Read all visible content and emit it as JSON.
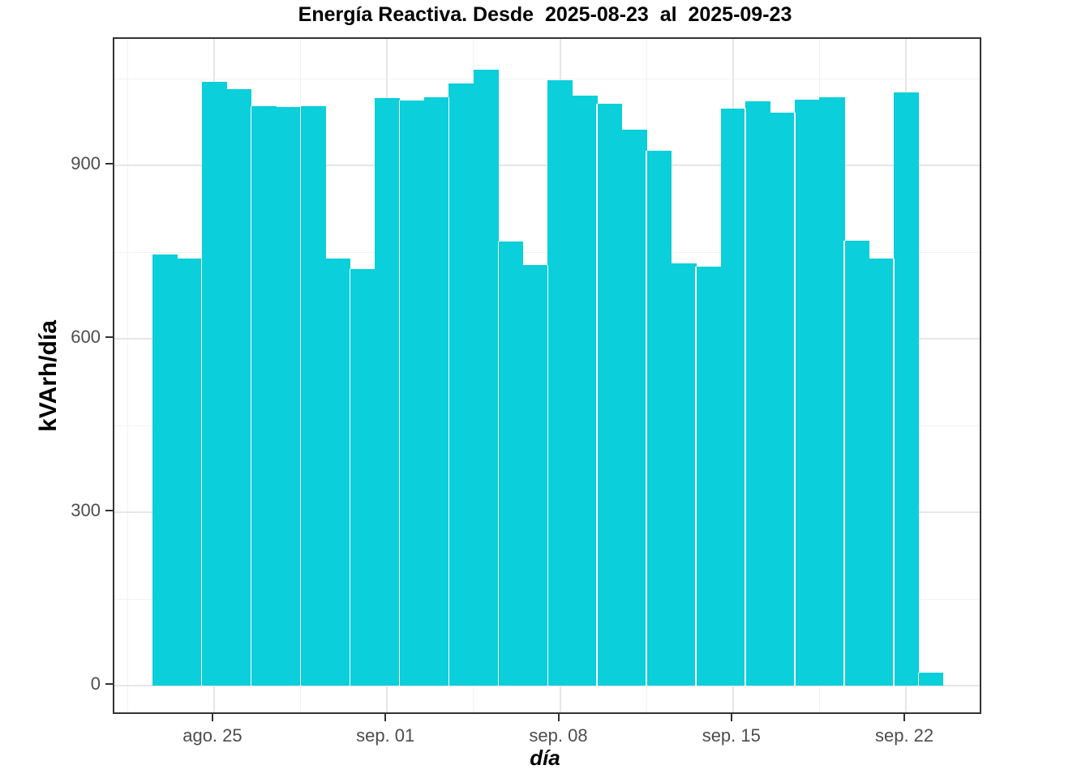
{
  "title": "Energía Reactiva. Desde  2025-08-23  al  2025-09-23",
  "axes": {
    "x_label": "día",
    "y_label": "kVArh/día",
    "x_tick_labels": [
      "ago. 25",
      "sep. 01",
      "sep. 08",
      "sep. 15",
      "sep. 22"
    ],
    "y_tick_labels": [
      "0",
      "300",
      "600",
      "900"
    ]
  },
  "colors": {
    "bar_fill": "#0bcfda",
    "grid_major": "#e6e6e6",
    "grid_minor": "#f2f2f2",
    "panel_border": "#333333",
    "tick_mark": "#333333",
    "tick_text": "#4d4d4d",
    "title_text": "#000000"
  },
  "chart_data": {
    "type": "bar",
    "title": "Energía Reactiva. Desde 2025-08-23 al 2025-09-23",
    "xlabel": "día",
    "ylabel": "kVArh/día",
    "x": [
      "2025-08-23",
      "2025-08-24",
      "2025-08-25",
      "2025-08-26",
      "2025-08-27",
      "2025-08-28",
      "2025-08-29",
      "2025-08-30",
      "2025-08-31",
      "2025-09-01",
      "2025-09-02",
      "2025-09-03",
      "2025-09-04",
      "2025-09-05",
      "2025-09-06",
      "2025-09-07",
      "2025-09-08",
      "2025-09-09",
      "2025-09-10",
      "2025-09-11",
      "2025-09-12",
      "2025-09-13",
      "2025-09-14",
      "2025-09-15",
      "2025-09-16",
      "2025-09-17",
      "2025-09-18",
      "2025-09-19",
      "2025-09-20",
      "2025-09-21",
      "2025-09-22",
      "2025-09-23"
    ],
    "values": [
      746,
      739,
      1044,
      1032,
      1003,
      1001,
      1002,
      739,
      721,
      1016,
      1012,
      1018,
      1042,
      1065,
      768,
      728,
      1047,
      1020,
      1006,
      961,
      925,
      731,
      725,
      998,
      1011,
      991,
      1014,
      1018,
      770,
      739,
      1026,
      22
    ],
    "x_major_ticks": {
      "labels": [
        "ago. 25",
        "sep. 01",
        "sep. 08",
        "sep. 15",
        "sep. 22"
      ],
      "indices": [
        2,
        9,
        16,
        23,
        30
      ]
    },
    "y_major_ticks": [
      0,
      300,
      600,
      900
    ],
    "y_minor_ticks": [
      150,
      450,
      750,
      1050
    ],
    "ylim": [
      0,
      1065
    ],
    "grid": true,
    "legend": false,
    "bar_gap": 0
  }
}
